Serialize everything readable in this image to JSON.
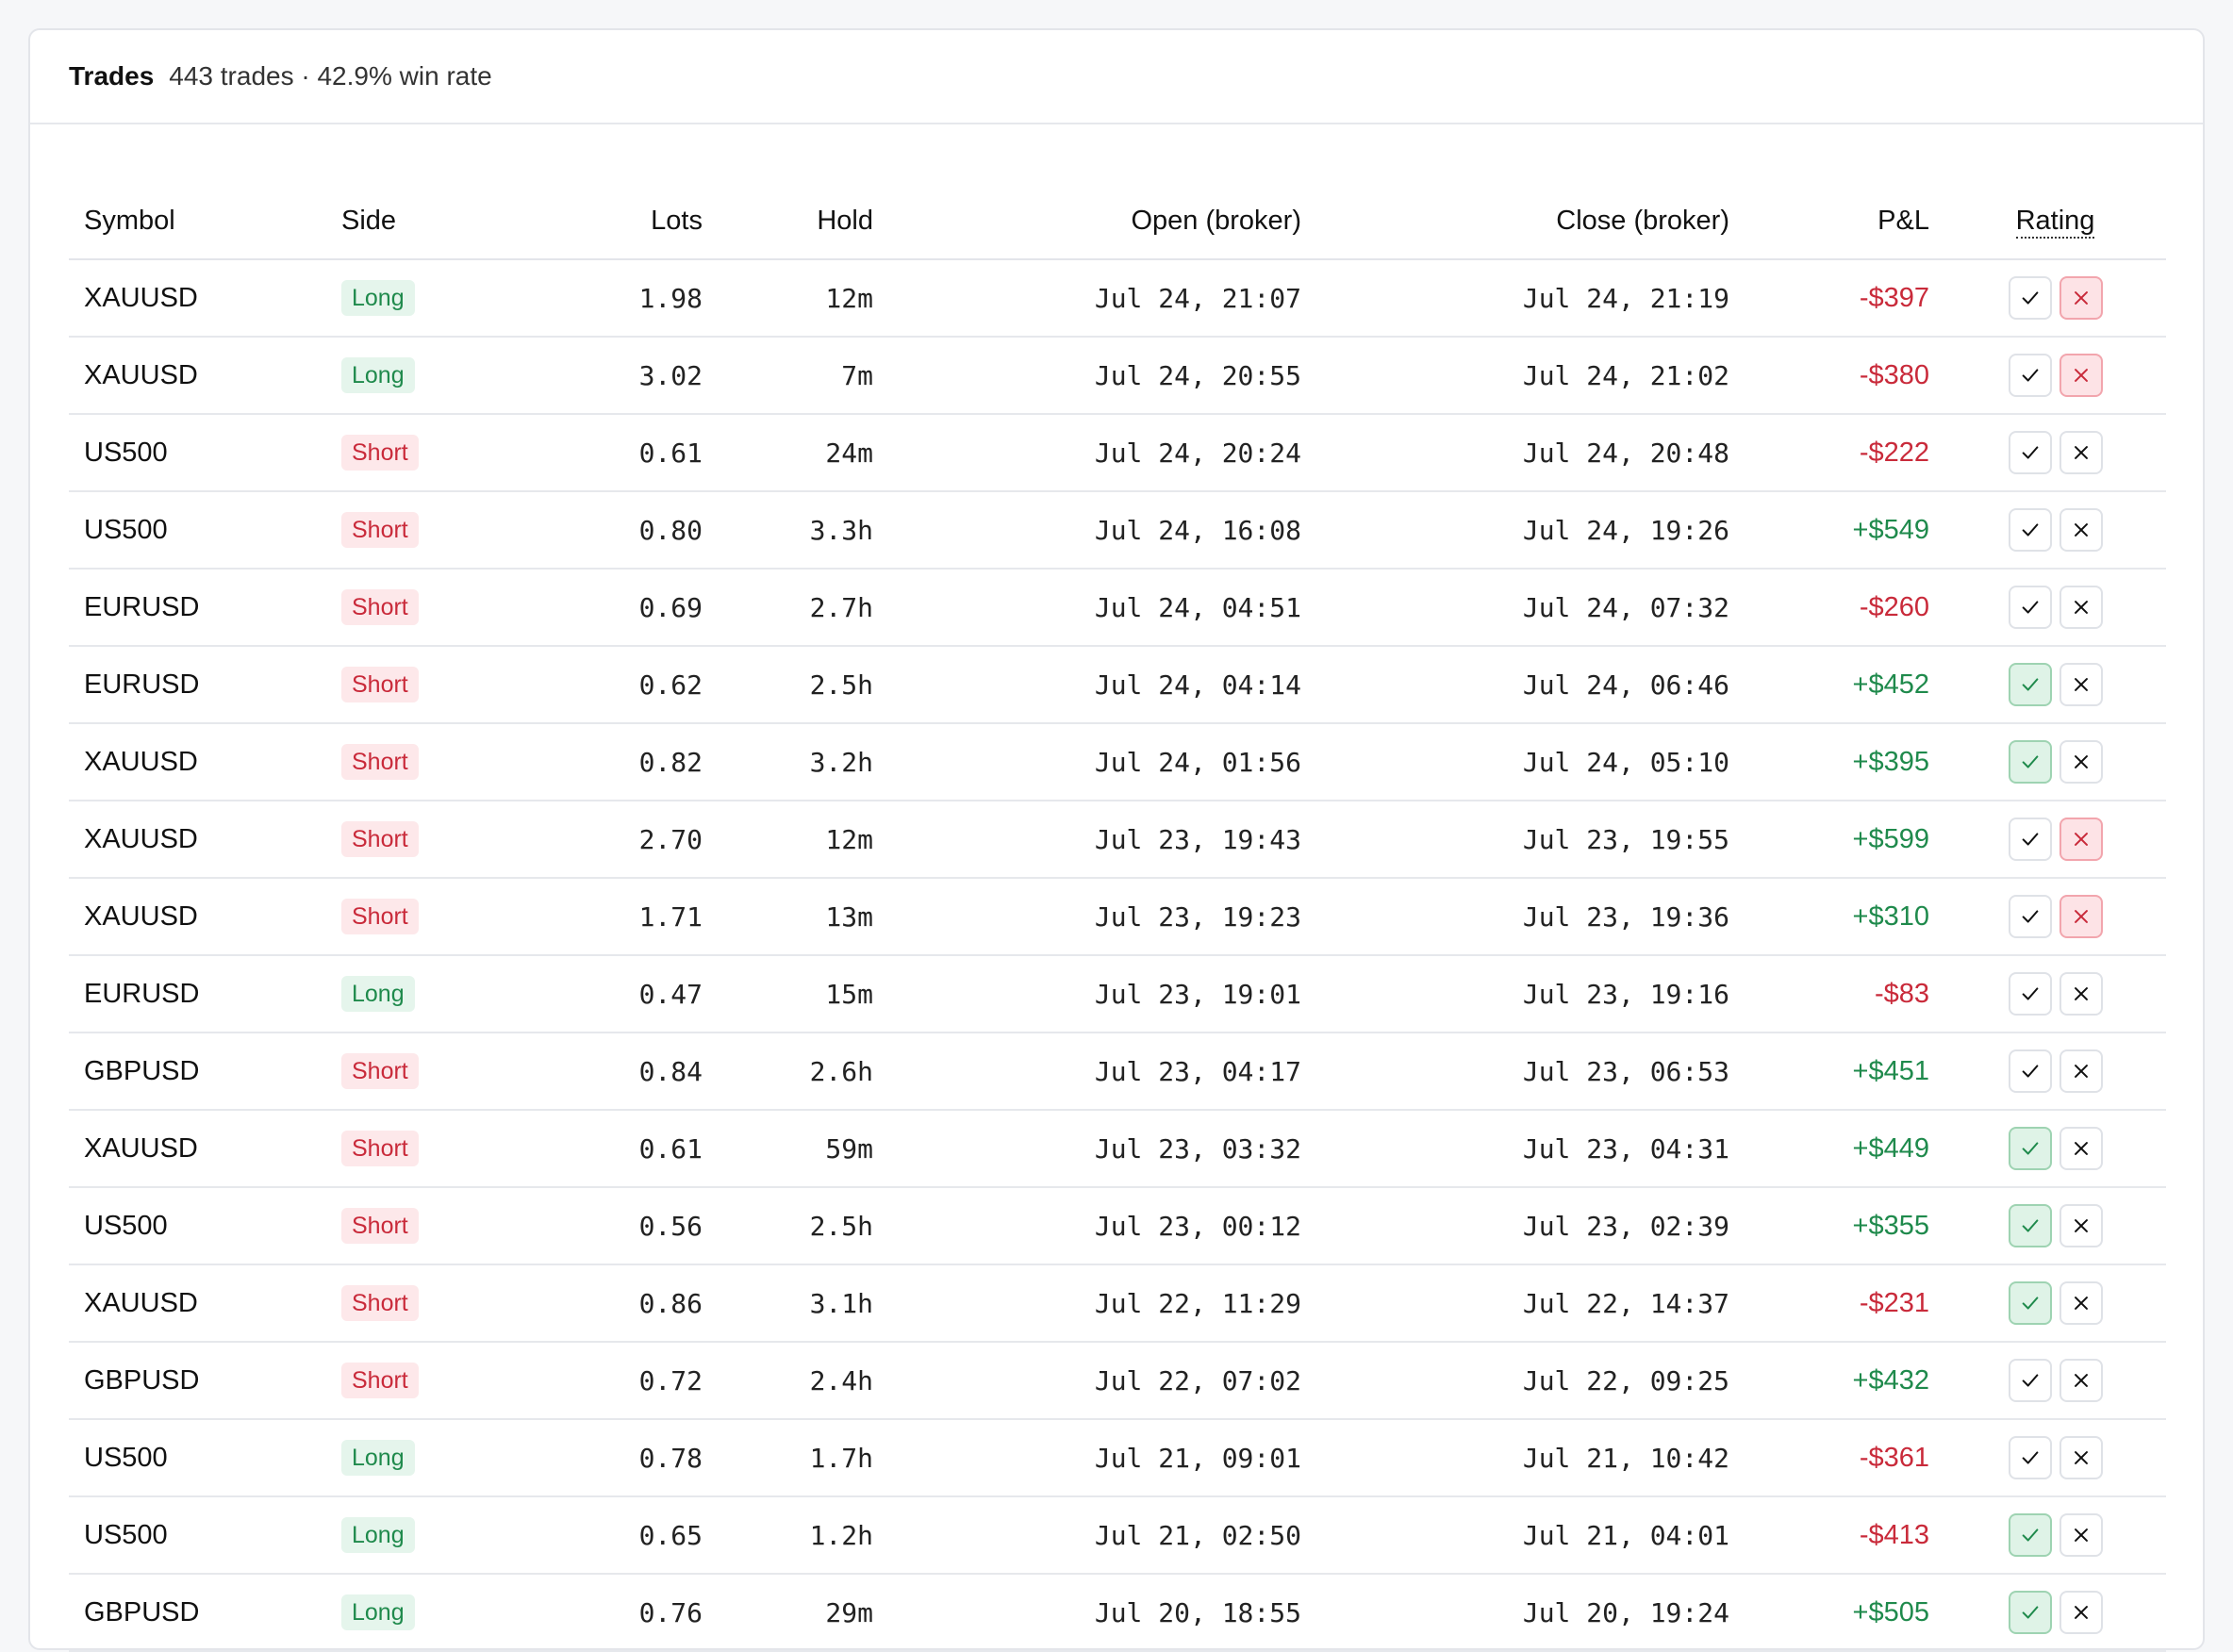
{
  "header": {
    "title": "Trades",
    "subtitle": "443 trades · 42.9% win rate"
  },
  "columns": [
    "Symbol",
    "Side",
    "Lots",
    "Hold",
    "Open (broker)",
    "Close (broker)",
    "P&L",
    "Rating"
  ],
  "icons": {
    "check": "check-icon",
    "cross": "cross-icon"
  },
  "colors": {
    "positive": "#1f8a4c",
    "negative": "#c92a3a"
  },
  "rows": [
    {
      "symbol": "XAUUSD",
      "side": "Long",
      "lots": "1.98",
      "hold": "12m",
      "open": "Jul 24, 21:07",
      "close": "Jul 24, 21:19",
      "pnl": "-$397",
      "rating": "cross"
    },
    {
      "symbol": "XAUUSD",
      "side": "Long",
      "lots": "3.02",
      "hold": "7m",
      "open": "Jul 24, 20:55",
      "close": "Jul 24, 21:02",
      "pnl": "-$380",
      "rating": "cross"
    },
    {
      "symbol": "US500",
      "side": "Short",
      "lots": "0.61",
      "hold": "24m",
      "open": "Jul 24, 20:24",
      "close": "Jul 24, 20:48",
      "pnl": "-$222",
      "rating": "none"
    },
    {
      "symbol": "US500",
      "side": "Short",
      "lots": "0.80",
      "hold": "3.3h",
      "open": "Jul 24, 16:08",
      "close": "Jul 24, 19:26",
      "pnl": "+$549",
      "rating": "none"
    },
    {
      "symbol": "EURUSD",
      "side": "Short",
      "lots": "0.69",
      "hold": "2.7h",
      "open": "Jul 24, 04:51",
      "close": "Jul 24, 07:32",
      "pnl": "-$260",
      "rating": "none"
    },
    {
      "symbol": "EURUSD",
      "side": "Short",
      "lots": "0.62",
      "hold": "2.5h",
      "open": "Jul 24, 04:14",
      "close": "Jul 24, 06:46",
      "pnl": "+$452",
      "rating": "check"
    },
    {
      "symbol": "XAUUSD",
      "side": "Short",
      "lots": "0.82",
      "hold": "3.2h",
      "open": "Jul 24, 01:56",
      "close": "Jul 24, 05:10",
      "pnl": "+$395",
      "rating": "check"
    },
    {
      "symbol": "XAUUSD",
      "side": "Short",
      "lots": "2.70",
      "hold": "12m",
      "open": "Jul 23, 19:43",
      "close": "Jul 23, 19:55",
      "pnl": "+$599",
      "rating": "cross"
    },
    {
      "symbol": "XAUUSD",
      "side": "Short",
      "lots": "1.71",
      "hold": "13m",
      "open": "Jul 23, 19:23",
      "close": "Jul 23, 19:36",
      "pnl": "+$310",
      "rating": "cross"
    },
    {
      "symbol": "EURUSD",
      "side": "Long",
      "lots": "0.47",
      "hold": "15m",
      "open": "Jul 23, 19:01",
      "close": "Jul 23, 19:16",
      "pnl": "-$83",
      "rating": "none"
    },
    {
      "symbol": "GBPUSD",
      "side": "Short",
      "lots": "0.84",
      "hold": "2.6h",
      "open": "Jul 23, 04:17",
      "close": "Jul 23, 06:53",
      "pnl": "+$451",
      "rating": "none"
    },
    {
      "symbol": "XAUUSD",
      "side": "Short",
      "lots": "0.61",
      "hold": "59m",
      "open": "Jul 23, 03:32",
      "close": "Jul 23, 04:31",
      "pnl": "+$449",
      "rating": "check"
    },
    {
      "symbol": "US500",
      "side": "Short",
      "lots": "0.56",
      "hold": "2.5h",
      "open": "Jul 23, 00:12",
      "close": "Jul 23, 02:39",
      "pnl": "+$355",
      "rating": "check"
    },
    {
      "symbol": "XAUUSD",
      "side": "Short",
      "lots": "0.86",
      "hold": "3.1h",
      "open": "Jul 22, 11:29",
      "close": "Jul 22, 14:37",
      "pnl": "-$231",
      "rating": "check"
    },
    {
      "symbol": "GBPUSD",
      "side": "Short",
      "lots": "0.72",
      "hold": "2.4h",
      "open": "Jul 22, 07:02",
      "close": "Jul 22, 09:25",
      "pnl": "+$432",
      "rating": "none"
    },
    {
      "symbol": "US500",
      "side": "Long",
      "lots": "0.78",
      "hold": "1.7h",
      "open": "Jul 21, 09:01",
      "close": "Jul 21, 10:42",
      "pnl": "-$361",
      "rating": "none"
    },
    {
      "symbol": "US500",
      "side": "Long",
      "lots": "0.65",
      "hold": "1.2h",
      "open": "Jul 21, 02:50",
      "close": "Jul 21, 04:01",
      "pnl": "-$413",
      "rating": "check"
    },
    {
      "symbol": "GBPUSD",
      "side": "Long",
      "lots": "0.76",
      "hold": "29m",
      "open": "Jul 20, 18:55",
      "close": "Jul 20, 19:24",
      "pnl": "+$505",
      "rating": "check"
    }
  ]
}
